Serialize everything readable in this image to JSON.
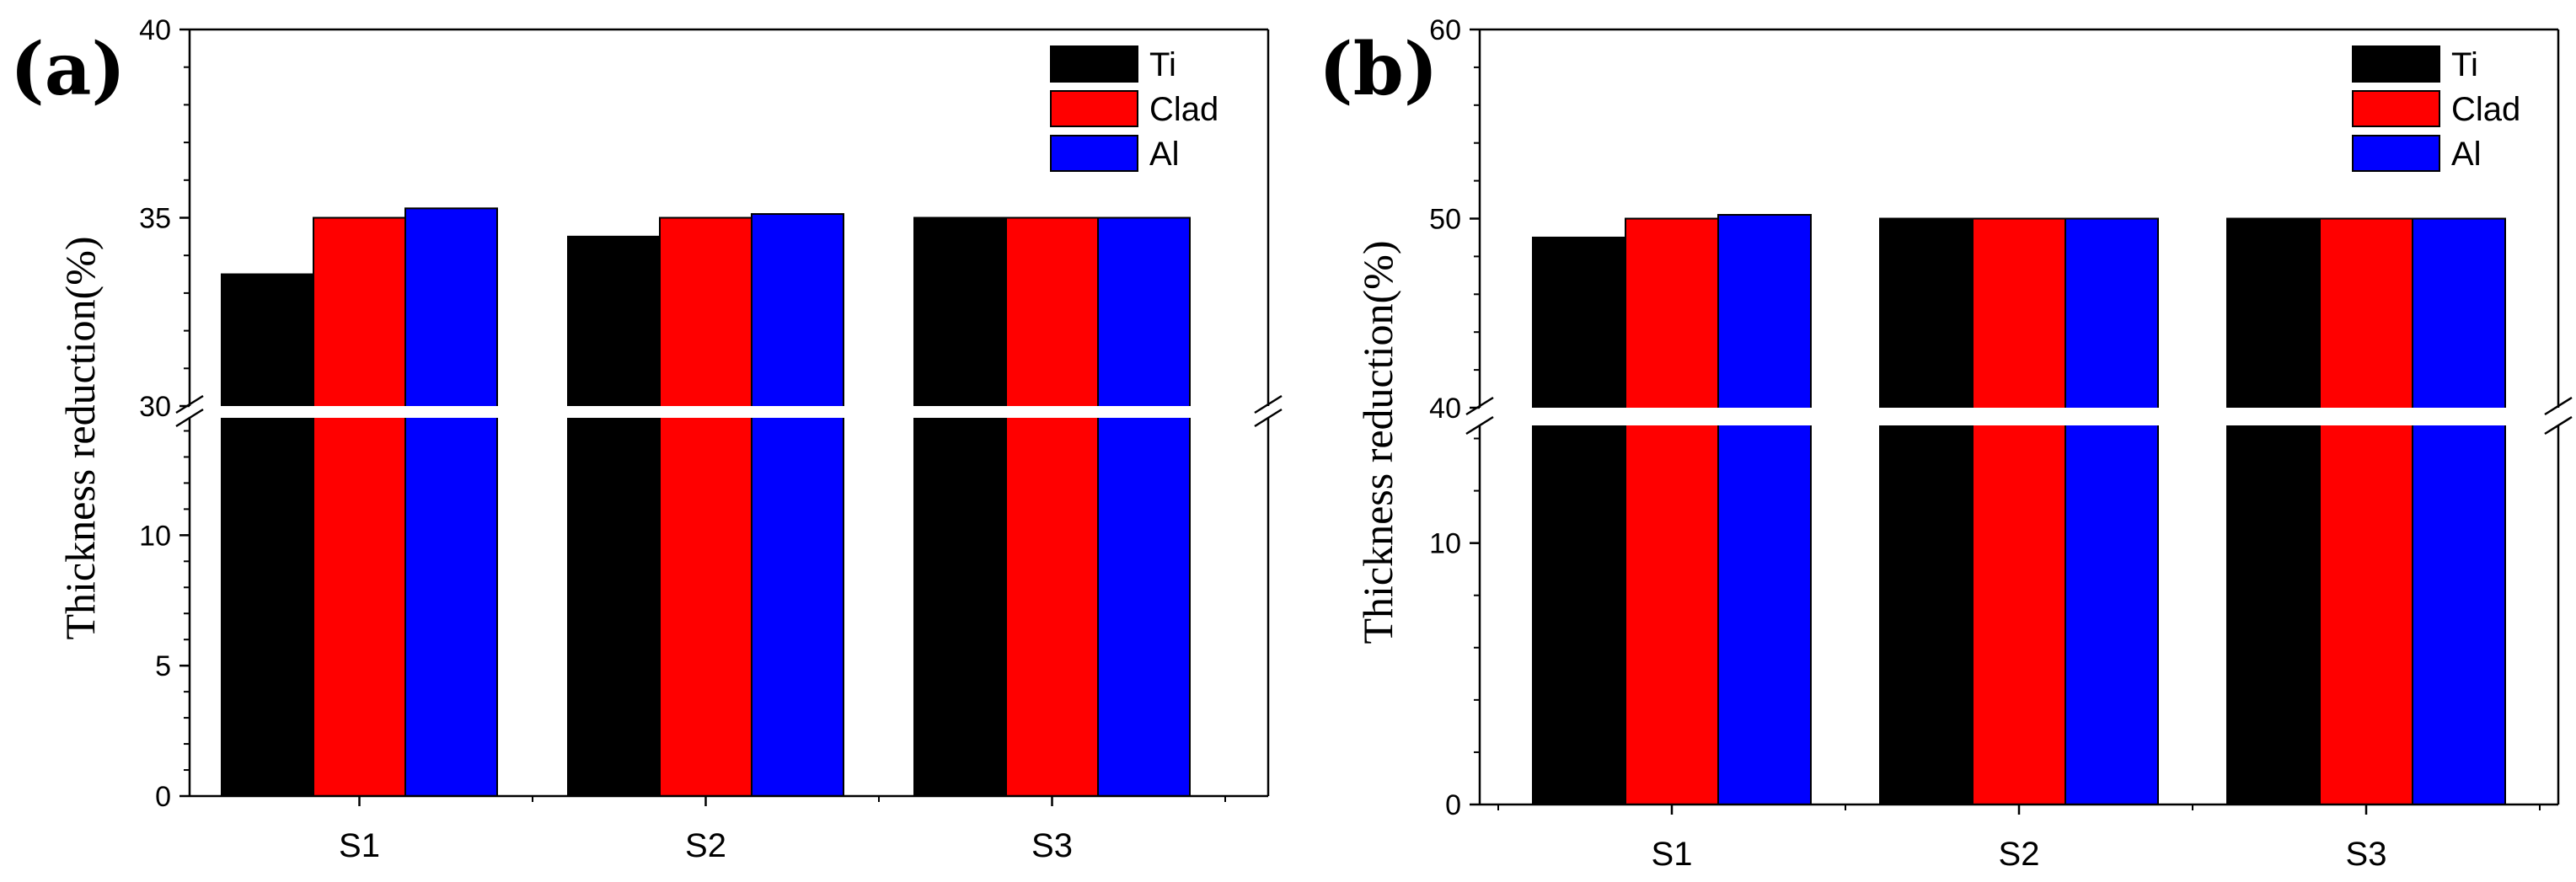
{
  "chart_data": [
    {
      "type": "bar",
      "panel_label": "(a)",
      "categories": [
        "S1",
        "S2",
        "S3"
      ],
      "series": [
        {
          "name": "Ti",
          "color": "#000000",
          "values": [
            33.5,
            34.5,
            35.0
          ]
        },
        {
          "name": "Clad",
          "color": "#ff0000",
          "values": [
            35.0,
            35.0,
            35.0
          ]
        },
        {
          "name": "Al",
          "color": "#0000ff",
          "values": [
            35.25,
            35.1,
            35.0
          ]
        }
      ],
      "ylabel": "Thickness reduction(%)",
      "xlabel": "",
      "broken_axis": {
        "lower_range": [
          0,
          14.5
        ],
        "upper_range": [
          30,
          40
        ]
      },
      "lower_ticks": [
        "0",
        "5",
        "10"
      ],
      "upper_ticks": [
        "30",
        "35",
        "40"
      ],
      "legend_position": "top-right"
    },
    {
      "type": "bar",
      "panel_label": "(b)",
      "categories": [
        "S1",
        "S2",
        "S3"
      ],
      "series": [
        {
          "name": "Ti",
          "color": "#000000",
          "values": [
            49.0,
            50.0,
            50.0
          ]
        },
        {
          "name": "Clad",
          "color": "#ff0000",
          "values": [
            50.0,
            50.0,
            50.0
          ]
        },
        {
          "name": "Al",
          "color": "#0000ff",
          "values": [
            50.2,
            50.0,
            50.0
          ]
        }
      ],
      "ylabel": "Thickness reduction(%)",
      "xlabel": "",
      "broken_axis": {
        "lower_range": [
          0,
          14.5
        ],
        "upper_range": [
          40,
          60
        ]
      },
      "lower_ticks": [
        "0",
        "10"
      ],
      "upper_ticks": [
        "40",
        "50",
        "60"
      ],
      "legend_position": "top-right"
    }
  ]
}
